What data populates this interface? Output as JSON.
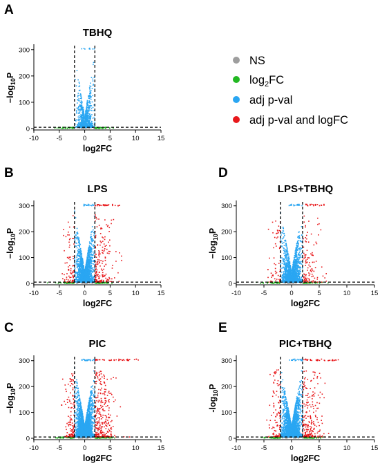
{
  "legend": {
    "entries": [
      {
        "label": "NS",
        "color": "#9e9e9e"
      },
      {
        "label": "log",
        "sub": "2",
        "tail": "FC",
        "color": "#22b822"
      },
      {
        "label": "adj p-val",
        "color": "#2aa6f2"
      },
      {
        "label": "adj p-val and logFC",
        "color": "#e8181b"
      }
    ]
  },
  "chart_data": [
    {
      "type": "scatter",
      "panel_letter": "A",
      "title": "TBHQ",
      "xlabel": "log2FC",
      "ylabel": {
        "prefix": "−log",
        "sub": "10",
        "suffix": "P"
      },
      "xlim": [
        -10,
        15
      ],
      "ylim": [
        0,
        310
      ],
      "x_ticks": [
        -10,
        -5,
        0,
        5,
        10,
        15
      ],
      "y_ticks": [
        0,
        100,
        200,
        300
      ],
      "fc_cutoff": [
        -2,
        2
      ],
      "p_cutoff_line": 5,
      "density": {
        "blue_core": 900,
        "blue_top": 8,
        "red_fringe": 0,
        "red_top": 0,
        "green": 70,
        "red_cap_max_x": 2.2,
        "max_y": 300
      }
    },
    {
      "type": "scatter",
      "panel_letter": "B",
      "title": "LPS",
      "xlabel": "log2FC",
      "ylabel": {
        "prefix": "−log",
        "sub": "10",
        "suffix": "P"
      },
      "xlim": [
        -10,
        15
      ],
      "ylim": [
        0,
        310
      ],
      "x_ticks": [
        -10,
        -5,
        0,
        5,
        10,
        15
      ],
      "y_ticks": [
        0,
        100,
        200,
        300
      ],
      "fc_cutoff": [
        -2,
        2
      ],
      "p_cutoff_line": 5,
      "density": {
        "blue_core": 2600,
        "blue_top": 20,
        "red_fringe": 260,
        "red_top": 30,
        "green": 110,
        "red_cap_max_x": 7.0,
        "max_y": 305
      }
    },
    {
      "type": "scatter",
      "panel_letter": "C",
      "title": "PIC",
      "xlabel": "log2FC",
      "ylabel": {
        "prefix": "−log",
        "sub": "10",
        "suffix": "P"
      },
      "xlim": [
        -10,
        15
      ],
      "ylim": [
        0,
        310
      ],
      "x_ticks": [
        -10,
        -5,
        0,
        5,
        10,
        15
      ],
      "y_ticks": [
        0,
        100,
        200,
        300
      ],
      "fc_cutoff": [
        -2,
        2
      ],
      "p_cutoff_line": 5,
      "density": {
        "blue_core": 3400,
        "blue_top": 25,
        "red_fringe": 420,
        "red_top": 40,
        "green": 130,
        "red_cap_max_x": 11.0,
        "max_y": 308
      }
    },
    {
      "type": "scatter",
      "panel_letter": "D",
      "title": "LPS+TBHQ",
      "xlabel": "log2FC",
      "ylabel": {
        "prefix": "−log",
        "sub": "10",
        "suffix": "P"
      },
      "xlim": [
        -10,
        15
      ],
      "ylim": [
        0,
        310
      ],
      "x_ticks": [
        -10,
        -5,
        0,
        5,
        10,
        15
      ],
      "y_ticks": [
        0,
        100,
        200,
        300
      ],
      "fc_cutoff": [
        -2,
        2
      ],
      "p_cutoff_line": 5,
      "density": {
        "blue_core": 2200,
        "blue_top": 18,
        "red_fringe": 170,
        "red_top": 22,
        "green": 100,
        "red_cap_max_x": 6.0,
        "max_y": 305
      }
    },
    {
      "type": "scatter",
      "panel_letter": "E",
      "title": "PIC+TBHQ",
      "xlabel": "log2FC",
      "ylabel": {
        "prefix": "-log",
        "sub": "10",
        "suffix": "P"
      },
      "xlim": [
        -10,
        15
      ],
      "ylim": [
        0,
        310
      ],
      "x_ticks": [
        -10,
        -5,
        0,
        5,
        10,
        15
      ],
      "y_ticks": [
        0,
        100,
        200,
        300
      ],
      "fc_cutoff": [
        -2,
        2
      ],
      "p_cutoff_line": 5,
      "density": {
        "blue_core": 3000,
        "blue_top": 22,
        "red_fringe": 320,
        "red_top": 32,
        "green": 120,
        "red_cap_max_x": 9.0,
        "max_y": 308
      }
    }
  ]
}
